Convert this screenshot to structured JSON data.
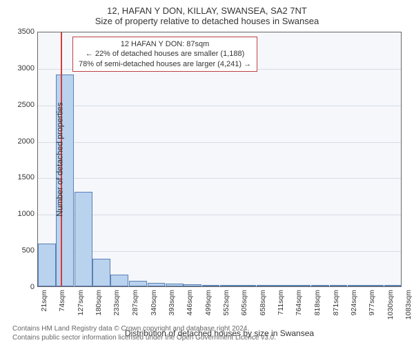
{
  "header": {
    "address": "12, HAFAN Y DON, KILLAY, SWANSEA, SA2 7NT",
    "subtitle": "Size of property relative to detached houses in Swansea"
  },
  "chart": {
    "type": "histogram",
    "background_color": "#f5f7fa",
    "border_color": "#666666",
    "grid_color": "#d6dde6",
    "bar_fill": "#b9d2ee",
    "bar_border": "#5a80b5",
    "marker_color": "#d63a3a",
    "annotation_border": "#c04040",
    "ylim": [
      0,
      3500
    ],
    "ytick_step": 500,
    "yticks": [
      0,
      500,
      1000,
      1500,
      2000,
      2500,
      3000,
      3500
    ],
    "ylabel": "Number of detached properties",
    "xlabel": "Distribution of detached houses by size in Swansea",
    "x_min": 21,
    "x_max": 1083,
    "x_bin_width": 53,
    "x_bins": [
      21,
      74,
      127,
      180,
      233,
      287,
      340,
      393,
      446,
      499,
      552,
      605,
      658,
      711,
      764,
      818,
      871,
      924,
      977,
      1030,
      1083
    ],
    "x_tick_labels": [
      "21sqm",
      "74sqm",
      "127sqm",
      "180sqm",
      "233sqm",
      "287sqm",
      "340sqm",
      "393sqm",
      "446sqm",
      "499sqm",
      "552sqm",
      "605sqm",
      "658sqm",
      "711sqm",
      "764sqm",
      "818sqm",
      "871sqm",
      "924sqm",
      "977sqm",
      "1030sqm",
      "1083sqm"
    ],
    "counts": [
      590,
      2900,
      1300,
      380,
      160,
      80,
      50,
      35,
      25,
      20,
      15,
      12,
      10,
      8,
      6,
      5,
      4,
      3,
      2,
      1
    ],
    "marker_x": 87,
    "annotation": {
      "line1": "12 HAFAN Y DON: 87sqm",
      "line2": "← 22% of detached houses are smaller (1,188)",
      "line3": "78% of semi-detached houses are larger (4,241) →"
    },
    "label_fontsize": 12,
    "tick_fontsize": 11
  },
  "footer": {
    "line1": "Contains HM Land Registry data © Crown copyright and database right 2024.",
    "line2": "Contains public sector information licensed under the Open Government Licence v3.0."
  }
}
